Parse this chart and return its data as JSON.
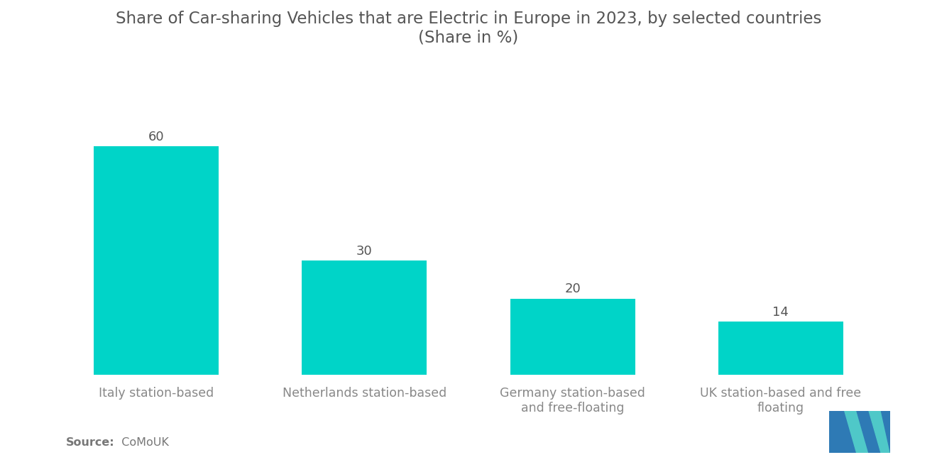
{
  "title": "Share of Car-sharing Vehicles that are Electric in Europe in 2023, by selected countries\n(Share in %)",
  "categories": [
    "Italy station-based",
    "Netherlands station-based",
    "Germany station-based\nand free-floating",
    "UK station-based and free\nfloating"
  ],
  "values": [
    60,
    30,
    20,
    14
  ],
  "bar_color": "#00D4C8",
  "background_color": "#ffffff",
  "title_fontsize": 16.5,
  "label_fontsize": 12.5,
  "value_fontsize": 13,
  "source_bold": "Source:",
  "source_normal": "  CoMoUK",
  "ylim": [
    0,
    80
  ],
  "title_color": "#555555",
  "tick_color": "#888888",
  "source_color": "#777777",
  "bar_width": 0.6,
  "logo_blue": "#2E7AB5",
  "logo_cyan": "#4FC8C8"
}
